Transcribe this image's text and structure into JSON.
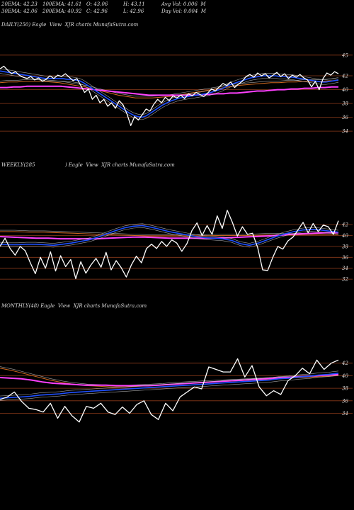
{
  "header": {
    "ema20": "20EMA: 42.23",
    "ema100": "100EMA: 41.61",
    "open": "O: 43.06",
    "high": "H: 43.11",
    "avgvol": "Avg Vol: 0.006  M",
    "ema30": "30EMA: 42.06",
    "ema200": "200EMA: 40.92",
    "close": "C: 42.96",
    "low": "L: 42.96",
    "dayvol": "Day Vol: 0.004  M"
  },
  "panels": {
    "daily_label": "DAILY(250) Eagle  View  XJR charts MunafaSutra.com",
    "weekly_label": "WEEKLY(285                   ) Eagle  View  XJR charts MunafaSutra.com",
    "monthly_label": "MONTHLY(48) Eagle  View  XJR charts MunafaSutra.com"
  },
  "colors": {
    "price": "#ffffff",
    "ema_fast": "#1e50ff",
    "ema_pink": "#ff40ff",
    "ema_orange": "#d2691e",
    "ema_white2": "#cccccc",
    "gridline": "#8b3a1a"
  },
  "chart_data": [
    {
      "type": "line",
      "title": "DAILY(250) Eagle  View  XJR charts MunafaSutra.com",
      "yticks": [
        45,
        42,
        40,
        38,
        36,
        34
      ],
      "ylim": [
        33.5,
        46.0
      ],
      "grid": true,
      "series": [
        {
          "role": "price",
          "values": [
            43.0,
            43.4,
            42.8,
            42.3,
            42.6,
            42.1,
            41.8,
            41.6,
            41.9,
            41.4,
            41.7,
            41.2,
            41.5,
            42.0,
            41.6,
            42.1,
            41.9,
            42.3,
            41.8,
            41.3,
            41.6,
            40.6,
            39.6,
            40.1,
            38.6,
            39.2,
            38.1,
            38.6,
            37.6,
            38.1,
            37.3,
            38.4,
            37.8,
            36.5,
            34.8,
            36.1,
            35.6,
            36.4,
            37.2,
            36.9,
            37.9,
            38.6,
            38.1,
            38.9,
            38.4,
            39.1,
            38.8,
            39.2,
            38.7,
            39.4,
            39.1,
            39.6,
            39.3,
            39.0,
            39.5,
            40.1,
            39.8,
            40.4,
            40.9,
            40.6,
            41.1,
            40.3,
            40.8,
            41.2,
            41.9,
            42.2,
            41.8,
            42.4,
            42.0,
            42.3,
            41.7,
            42.1,
            42.5,
            41.9,
            42.3,
            41.6,
            42.1,
            41.8,
            42.2,
            41.7,
            41.4,
            40.4,
            41.2,
            40.0,
            41.6,
            42.4,
            42.1,
            42.6,
            42.3
          ]
        },
        {
          "role": "ema_fast",
          "values": [
            42.7,
            42.6,
            42.5,
            42.4,
            42.3,
            42.2,
            42.1,
            42.0,
            41.9,
            41.8,
            41.7,
            41.6,
            41.6,
            41.6,
            41.6,
            41.6,
            41.5,
            41.5,
            41.4,
            41.3,
            41.0,
            40.6,
            40.2,
            39.8,
            39.4,
            39.0,
            38.6,
            38.2,
            37.8,
            37.4,
            37.0,
            36.6,
            36.3,
            36.1,
            36.0,
            36.2,
            36.6,
            37.0,
            37.4,
            37.8,
            38.1,
            38.4,
            38.6,
            38.8,
            38.9,
            39.0,
            39.1,
            39.2,
            39.3,
            39.4,
            39.5,
            39.7,
            39.9,
            40.1,
            40.4,
            40.7,
            40.9,
            41.1,
            41.3,
            41.5,
            41.7,
            41.8,
            41.9,
            42.0,
            42.0,
            42.0,
            42.0,
            41.9,
            41.9,
            41.8,
            41.8,
            41.7,
            41.6,
            41.5,
            41.4,
            41.3,
            41.2,
            41.1,
            41.1,
            41.2,
            41.3,
            41.4
          ]
        },
        {
          "role": "ema_pink",
          "values": [
            40.3,
            40.3,
            40.4,
            40.4,
            40.5,
            40.5,
            40.5,
            40.5,
            40.5,
            40.5,
            40.4,
            40.3,
            40.2,
            40.1,
            40.0,
            39.9,
            39.8,
            39.7,
            39.6,
            39.5,
            39.4,
            39.3,
            39.2,
            39.2,
            39.2,
            39.2,
            39.2,
            39.2,
            39.2,
            39.2,
            39.3,
            39.3,
            39.4,
            39.4,
            39.5,
            39.5,
            39.6,
            39.7,
            39.8,
            39.8,
            39.9,
            40.0,
            40.0,
            40.1,
            40.1,
            40.2,
            40.2,
            40.3,
            40.3,
            40.4,
            40.4
          ]
        },
        {
          "role": "ema_orange",
          "values": [
            41.0,
            41.1,
            41.1,
            41.2,
            41.2,
            41.2,
            41.1,
            41.0,
            40.8,
            40.6,
            40.4,
            40.1,
            39.8,
            39.5,
            39.2,
            39.0,
            38.8,
            38.8,
            38.8,
            38.9,
            39.0,
            39.2,
            39.4,
            39.6,
            39.8,
            40.0,
            40.2,
            40.4,
            40.6,
            40.7,
            40.8,
            40.9,
            41.0,
            41.0,
            41.1,
            41.1,
            41.2,
            41.2,
            41.2,
            41.3,
            41.3
          ]
        }
      ]
    },
    {
      "type": "line",
      "title": "WEEKLY(285                   ) Eagle  View  XJR charts MunafaSutra.com",
      "yticks": [
        42,
        40,
        38,
        36,
        34,
        32
      ],
      "ylim": [
        31.5,
        45.5
      ],
      "grid": true,
      "series": [
        {
          "role": "price",
          "values": [
            38.0,
            39.5,
            37.6,
            36.4,
            38.0,
            37.2,
            35.0,
            33.0,
            36.0,
            34.0,
            37.0,
            33.5,
            36.3,
            34.3,
            35.6,
            32.1,
            35.2,
            33.1,
            34.6,
            35.8,
            34.2,
            36.9,
            33.7,
            35.4,
            34.1,
            32.4,
            34.6,
            36.2,
            35.0,
            37.6,
            38.4,
            37.6,
            38.9,
            38.0,
            39.2,
            38.6,
            37.1,
            38.5,
            40.9,
            42.3,
            40.0,
            41.8,
            40.2,
            43.6,
            41.3,
            44.6,
            42.4,
            39.9,
            41.6,
            40.2,
            40.4,
            37.8,
            33.7,
            33.6,
            36.0,
            38.0,
            37.5,
            39.0,
            39.7,
            41.0,
            42.4,
            40.5,
            42.2,
            40.7,
            41.9,
            41.6,
            40.2,
            42.7
          ]
        },
        {
          "role": "ema_fast",
          "values": [
            38.4,
            38.3,
            38.3,
            38.4,
            38.4,
            38.3,
            38.2,
            38.4,
            38.6,
            38.9,
            39.2,
            39.7,
            40.3,
            40.9,
            41.4,
            41.7,
            41.8,
            41.5,
            41.1,
            40.7,
            40.4,
            40.1,
            39.8,
            39.6,
            39.5,
            39.4,
            39.1,
            38.5,
            38.2,
            38.6,
            39.2,
            39.8,
            40.3,
            40.7,
            41.0,
            41.1,
            41.0,
            40.8,
            40.6
          ]
        },
        {
          "role": "ema_pink",
          "values": [
            39.8,
            39.7,
            39.6,
            39.5,
            39.5,
            39.4,
            39.4,
            39.4,
            39.4,
            39.5,
            39.6,
            39.7,
            39.7,
            39.6,
            39.5,
            39.5,
            39.5,
            39.5,
            39.5,
            39.6,
            39.7,
            39.8,
            39.9,
            40.0,
            40.2,
            40.3,
            40.4,
            40.5,
            40.5
          ]
        },
        {
          "role": "ema_orange",
          "values": [
            40.7,
            40.7,
            40.6,
            40.6,
            40.5,
            40.4,
            40.3,
            40.2,
            40.1,
            40.0,
            39.9,
            39.9,
            39.9,
            39.9,
            39.9,
            40.0,
            40.0,
            40.0,
            40.1,
            40.1,
            40.1,
            40.2,
            40.2,
            40.2
          ]
        }
      ]
    },
    {
      "type": "line",
      "title": "MONTHLY(48) Eagle  View  XJR charts MunafaSutra.com",
      "yticks": [
        42,
        40,
        38,
        36,
        34
      ],
      "ylim": [
        31.0,
        44.0
      ],
      "grid": true,
      "series": [
        {
          "role": "price",
          "values": [
            36.2,
            36.6,
            37.4,
            35.9,
            34.8,
            34.6,
            34.2,
            35.6,
            33.2,
            35.1,
            33.6,
            32.6,
            35.1,
            34.8,
            35.6,
            34.2,
            33.8,
            35.0,
            34.0,
            35.4,
            36.0,
            33.8,
            33.0,
            35.6,
            34.4,
            36.6,
            37.4,
            38.2,
            37.9,
            41.4,
            41.0,
            40.6,
            40.6,
            42.7,
            39.8,
            41.6,
            38.2,
            36.8,
            37.6,
            37.0,
            39.2,
            40.0,
            41.2,
            40.3,
            42.5,
            41.0,
            42.0,
            42.5
          ]
        },
        {
          "role": "ema_fast",
          "values": [
            36.4,
            36.5,
            36.6,
            36.7,
            36.9,
            37.0,
            37.1,
            37.3,
            37.4,
            37.5,
            37.6,
            37.7,
            37.8,
            37.9,
            38.0,
            38.1,
            38.2,
            38.3,
            38.4,
            38.5,
            38.6,
            38.7,
            38.8,
            38.9,
            39.0,
            39.1,
            39.2,
            39.3,
            39.5,
            39.6,
            39.8,
            39.9,
            40.1,
            40.2,
            40.4
          ]
        },
        {
          "role": "ema_pink",
          "values": [
            39.7,
            39.6,
            39.5,
            39.3,
            39.0,
            38.8,
            38.7,
            38.6,
            38.5,
            38.5,
            38.5,
            38.4,
            38.4,
            38.4,
            38.4,
            38.5,
            38.6,
            38.7,
            38.8,
            38.9,
            39.0,
            39.1,
            39.2,
            39.3,
            39.4,
            39.5,
            39.6,
            39.7,
            39.8,
            39.9,
            40.0,
            40.1,
            40.2
          ]
        },
        {
          "role": "ema_orange",
          "values": [
            41.2,
            40.8,
            40.3,
            39.8,
            39.3,
            38.9,
            38.6,
            38.4,
            38.3,
            38.2,
            38.2,
            38.3,
            38.4,
            38.5,
            38.7,
            38.8,
            38.9,
            39.0,
            39.1,
            39.2,
            39.3,
            39.4,
            39.5,
            39.6,
            39.7,
            39.8,
            39.9,
            40.0
          ]
        }
      ]
    }
  ]
}
